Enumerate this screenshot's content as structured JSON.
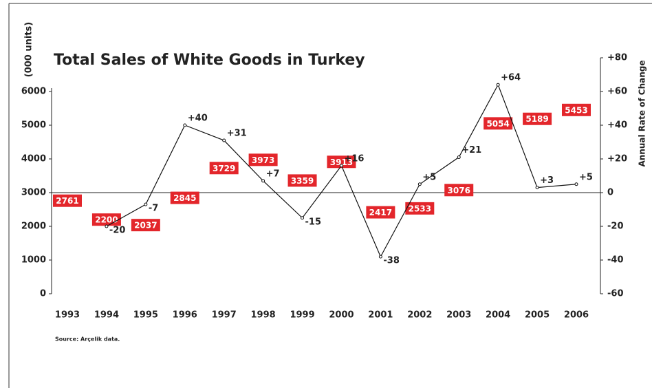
{
  "chart_data": {
    "type": "line",
    "title": "Total Sales of White Goods in Turkey",
    "y_label": "(000 units)",
    "y2_label": "Annual Rate of Change",
    "source": "Source: Arçelik data.",
    "categories": [
      "1993",
      "1994",
      "1995",
      "1996",
      "1997",
      "1998",
      "1999",
      "2000",
      "2001",
      "2002",
      "2003",
      "2004",
      "2005",
      "2006"
    ],
    "series": [
      {
        "color": "#e3262b",
        "axis": "y",
        "values": [
          2761,
          2200,
          2037,
          2845,
          3729,
          3973,
          3359,
          3913,
          2417,
          2533,
          3076,
          5054,
          5189,
          5453
        ]
      },
      {
        "color": "#111111",
        "axis": "y2",
        "values": [
          null,
          -20,
          -7,
          40,
          31,
          7,
          -15,
          16,
          -38,
          5,
          21,
          64,
          3,
          5
        ],
        "value_labels": [
          null,
          "-20",
          "-7",
          "+40",
          "+31",
          "+7",
          "-15",
          "+16",
          "-38",
          "+5",
          "+21",
          "+64",
          "+3",
          "+5"
        ]
      }
    ],
    "ylim": [
      0,
      6000
    ],
    "yticks": [
      0,
      1000,
      2000,
      3000,
      4000,
      5000,
      6000
    ],
    "y2lim": [
      -60,
      80
    ],
    "y2ticks": [
      -60,
      -40,
      -20,
      0,
      {
        "value": 20,
        "label": "+20"
      },
      {
        "value": 40,
        "label": "+40"
      },
      {
        "value": 60,
        "label": "+60"
      },
      {
        "value": 80,
        "label": "+80"
      }
    ]
  }
}
